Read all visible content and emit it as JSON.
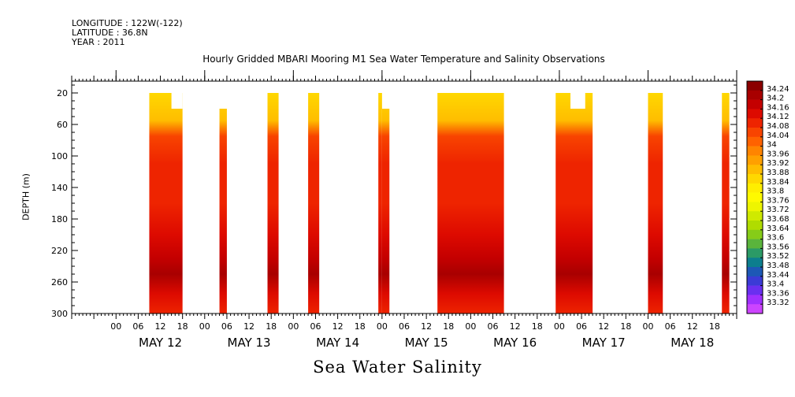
{
  "header": {
    "longitude": "LONGITUDE : 122W(-122)",
    "latitude": "LATITUDE : 36.8N",
    "year": "YEAR : 2011"
  },
  "chart_data": {
    "type": "heatmap",
    "title": "Hourly Gridded MBARI Mooring M1 Sea Water Temperature and Salinity Observations",
    "xlabel": "Sea Water Salinity",
    "ylabel": "DEPTH (m)",
    "y_ticks": [
      "20",
      "60",
      "100",
      "140",
      "180",
      "220",
      "260",
      "300"
    ],
    "y_range": [
      300,
      5
    ],
    "x_range_hours": [
      -12,
      168
    ],
    "x_hour_ticks": [
      "00",
      "06",
      "12",
      "18",
      "00",
      "06",
      "12",
      "18",
      "00",
      "06",
      "12",
      "18",
      "00",
      "06",
      "12",
      "18",
      "00",
      "06",
      "12",
      "18",
      "00",
      "06",
      "12",
      "18",
      "00",
      "06",
      "12",
      "18"
    ],
    "x_day_labels": [
      "MAY 12",
      "MAY 13",
      "MAY 14",
      "MAY 15",
      "MAY 16",
      "MAY 17",
      "MAY 18"
    ],
    "colorbar_labels": [
      "34.24",
      "34.2",
      "34.16",
      "34.12",
      "34.08",
      "34.04",
      "34",
      "33.96",
      "33.92",
      "33.88",
      "33.84",
      "33.8",
      "33.76",
      "33.72",
      "33.68",
      "33.64",
      "33.6",
      "33.56",
      "33.52",
      "33.48",
      "33.44",
      "33.4",
      "33.36",
      "33.32"
    ],
    "colorbar_colors": [
      "#8b0000",
      "#a80000",
      "#c40000",
      "#dd0a00",
      "#ee2400",
      "#f84400",
      "#ff6200",
      "#ff8400",
      "#ffa000",
      "#ffbd00",
      "#ffd800",
      "#ffee00",
      "#fffa00",
      "#eef500",
      "#cfea00",
      "#b0dc00",
      "#86cc18",
      "#5ab43c",
      "#2b9a66",
      "#0c7e8e",
      "#1d58b6",
      "#3b3bd6",
      "#6a2ff0",
      "#a030ff",
      "#cc44ff"
    ],
    "data_segments": [
      {
        "start_hour": 9,
        "end_hour": 18,
        "top_depth": 20,
        "notch_start_hour": 15,
        "notch_bottom_depth": 40
      },
      {
        "start_hour": 28,
        "end_hour": 30,
        "top_depth": 40
      },
      {
        "start_hour": 41,
        "end_hour": 44,
        "top_depth": 20
      },
      {
        "start_hour": 52,
        "end_hour": 55,
        "top_depth": 20
      },
      {
        "start_hour": 71,
        "end_hour": 72,
        "top_depth": 20
      },
      {
        "start_hour": 72,
        "end_hour": 74,
        "top_depth": 40
      },
      {
        "start_hour": 87,
        "end_hour": 105,
        "top_depth": 20
      },
      {
        "start_hour": 119,
        "end_hour": 129,
        "top_depth": 20,
        "notch_start_hour": 123,
        "notch_end_hour": 127,
        "notch_bottom_depth": 40
      },
      {
        "start_hour": 144,
        "end_hour": 148,
        "top_depth": 20
      },
      {
        "start_hour": 164,
        "end_hour": 166,
        "top_depth": 20
      }
    ],
    "salinity_profile": [
      {
        "depth": 20,
        "value": 33.85
      },
      {
        "depth": 55,
        "value": 33.9
      },
      {
        "depth": 75,
        "value": 34.02
      },
      {
        "depth": 110,
        "value": 34.06
      },
      {
        "depth": 160,
        "value": 34.08
      },
      {
        "depth": 200,
        "value": 34.1
      },
      {
        "depth": 230,
        "value": 34.14
      },
      {
        "depth": 250,
        "value": 34.18
      },
      {
        "depth": 275,
        "value": 34.12
      },
      {
        "depth": 300,
        "value": 34.08
      }
    ],
    "grid": false
  }
}
